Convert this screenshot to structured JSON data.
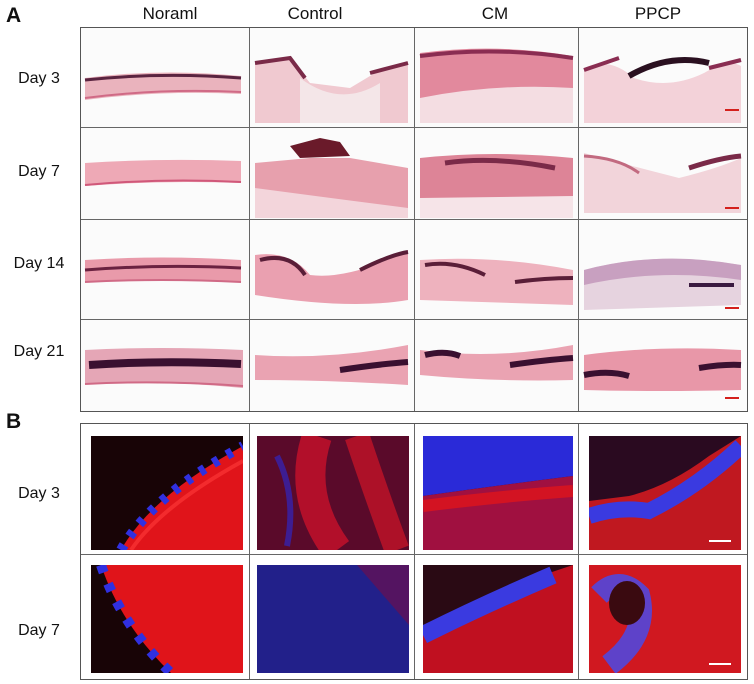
{
  "panels": {
    "a": "A",
    "b": "B"
  },
  "columns": [
    "Noraml",
    "Control",
    "CM",
    "PPCP"
  ],
  "panel_a_rows": [
    "Day 3",
    "Day 7",
    "Day 14",
    "Day 21"
  ],
  "panel_b_rows": [
    "Day 3",
    "Day 7"
  ],
  "colors": {
    "he_tissue": "#e8a1ae",
    "he_dark": "#7a2a48",
    "fluor_red": "#e0141a",
    "fluor_blue": "#2a2ad8",
    "scale_red": "#d4201c",
    "scale_white": "#ffffff"
  }
}
